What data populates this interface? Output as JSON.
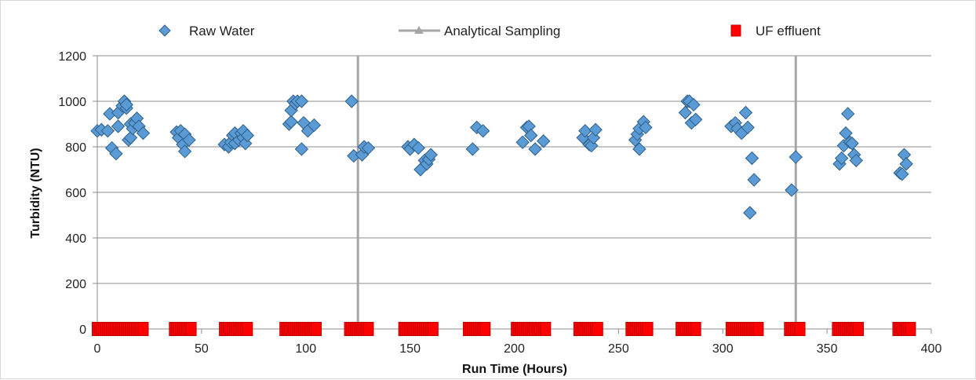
{
  "chart_data": {
    "type": "scatter",
    "xlabel": "Run Time (Hours)",
    "ylabel": "Turbidity (NTU)",
    "xlim": [
      0,
      400
    ],
    "ylim": [
      0,
      1200
    ],
    "x_ticks": [
      0,
      50,
      100,
      150,
      200,
      250,
      300,
      350,
      400
    ],
    "y_ticks": [
      0,
      200,
      400,
      600,
      800,
      1000,
      1200
    ],
    "grid": "horizontal",
    "legend_position": "top",
    "series": [
      {
        "name": "Raw Water",
        "marker": "diamond",
        "color": "#5b9bd5",
        "edge_color": "#2e5f8a",
        "points": [
          [
            0,
            870
          ],
          [
            2,
            875
          ],
          [
            5,
            870
          ],
          [
            6,
            945
          ],
          [
            7,
            795
          ],
          [
            9,
            770
          ],
          [
            10,
            890
          ],
          [
            10,
            950
          ],
          [
            12,
            980
          ],
          [
            13,
            1000
          ],
          [
            14,
            970
          ],
          [
            14,
            985
          ],
          [
            15,
            830
          ],
          [
            16,
            900
          ],
          [
            16,
            840
          ],
          [
            17,
            880
          ],
          [
            18,
            905
          ],
          [
            19,
            925
          ],
          [
            20,
            890
          ],
          [
            22,
            860
          ],
          [
            38,
            865
          ],
          [
            39,
            840
          ],
          [
            40,
            870
          ],
          [
            41,
            810
          ],
          [
            42,
            780
          ],
          [
            42,
            855
          ],
          [
            44,
            830
          ],
          [
            61,
            810
          ],
          [
            63,
            800
          ],
          [
            64,
            820
          ],
          [
            65,
            850
          ],
          [
            66,
            815
          ],
          [
            66,
            860
          ],
          [
            68,
            830
          ],
          [
            69,
            860
          ],
          [
            70,
            840
          ],
          [
            70,
            870
          ],
          [
            71,
            815
          ],
          [
            72,
            850
          ],
          [
            92,
            900
          ],
          [
            93,
            910
          ],
          [
            93,
            960
          ],
          [
            94,
            1000
          ],
          [
            95,
            990
          ],
          [
            96,
            1000
          ],
          [
            98,
            1000
          ],
          [
            98,
            790
          ],
          [
            99,
            905
          ],
          [
            101,
            870
          ],
          [
            104,
            895
          ],
          [
            122,
            1000
          ],
          [
            123,
            760
          ],
          [
            127,
            765
          ],
          [
            128,
            800
          ],
          [
            130,
            795
          ],
          [
            149,
            800
          ],
          [
            150,
            790
          ],
          [
            152,
            810
          ],
          [
            154,
            795
          ],
          [
            155,
            700
          ],
          [
            157,
            740
          ],
          [
            158,
            725
          ],
          [
            159,
            745
          ],
          [
            160,
            765
          ],
          [
            180,
            790
          ],
          [
            182,
            885
          ],
          [
            185,
            870
          ],
          [
            204,
            820
          ],
          [
            206,
            885
          ],
          [
            207,
            890
          ],
          [
            208,
            850
          ],
          [
            210,
            790
          ],
          [
            214,
            825
          ],
          [
            233,
            840
          ],
          [
            234,
            870
          ],
          [
            236,
            810
          ],
          [
            237,
            805
          ],
          [
            238,
            840
          ],
          [
            239,
            875
          ],
          [
            258,
            830
          ],
          [
            259,
            855
          ],
          [
            260,
            790
          ],
          [
            260,
            880
          ],
          [
            262,
            910
          ],
          [
            263,
            885
          ],
          [
            282,
            950
          ],
          [
            283,
            1000
          ],
          [
            284,
            1000
          ],
          [
            285,
            905
          ],
          [
            286,
            985
          ],
          [
            287,
            920
          ],
          [
            304,
            890
          ],
          [
            306,
            905
          ],
          [
            307,
            880
          ],
          [
            309,
            860
          ],
          [
            311,
            950
          ],
          [
            312,
            885
          ],
          [
            313,
            510
          ],
          [
            314,
            750
          ],
          [
            315,
            655
          ],
          [
            333,
            610
          ],
          [
            335,
            755
          ],
          [
            356,
            725
          ],
          [
            357,
            750
          ],
          [
            358,
            805
          ],
          [
            359,
            860
          ],
          [
            360,
            945
          ],
          [
            361,
            820
          ],
          [
            362,
            815
          ],
          [
            363,
            765
          ],
          [
            364,
            740
          ],
          [
            385,
            685
          ],
          [
            386,
            680
          ],
          [
            387,
            765
          ],
          [
            388,
            725
          ]
        ]
      },
      {
        "name": "Analytical Sampling",
        "marker": "triangle",
        "color": "#a6a6a6",
        "x_values": [
          125,
          335
        ]
      },
      {
        "name": "UF effluent",
        "marker": "square",
        "color": "#ff0000",
        "edge_color": "#c00000",
        "y_value": 0,
        "x_values": [
          0,
          1,
          2,
          3,
          4,
          5,
          6,
          7,
          8,
          9,
          10,
          11,
          12,
          13,
          14,
          15,
          16,
          17,
          18,
          19,
          20,
          21,
          22,
          37,
          38,
          39,
          40,
          41,
          42,
          43,
          44,
          45,
          61,
          62,
          63,
          64,
          65,
          66,
          67,
          68,
          69,
          70,
          71,
          72,
          90,
          91,
          92,
          93,
          94,
          95,
          96,
          97,
          98,
          99,
          100,
          101,
          102,
          103,
          104,
          105,
          121,
          122,
          123,
          124,
          125,
          126,
          127,
          128,
          129,
          130,
          147,
          148,
          149,
          150,
          151,
          152,
          153,
          154,
          155,
          156,
          157,
          158,
          159,
          160,
          161,
          178,
          179,
          180,
          181,
          182,
          183,
          184,
          185,
          186,
          201,
          202,
          203,
          204,
          205,
          206,
          207,
          208,
          209,
          210,
          211,
          212,
          213,
          214,
          215,
          231,
          232,
          233,
          234,
          235,
          236,
          237,
          238,
          239,
          240,
          256,
          257,
          258,
          259,
          260,
          261,
          262,
          263,
          264,
          280,
          281,
          282,
          283,
          284,
          285,
          286,
          287,
          304,
          305,
          306,
          307,
          308,
          309,
          310,
          311,
          312,
          313,
          314,
          315,
          316,
          317,
          332,
          333,
          334,
          335,
          336,
          337,
          355,
          356,
          357,
          358,
          359,
          360,
          361,
          362,
          363,
          364,
          365,
          384,
          385,
          386,
          387,
          388,
          389,
          390
        ]
      }
    ]
  }
}
